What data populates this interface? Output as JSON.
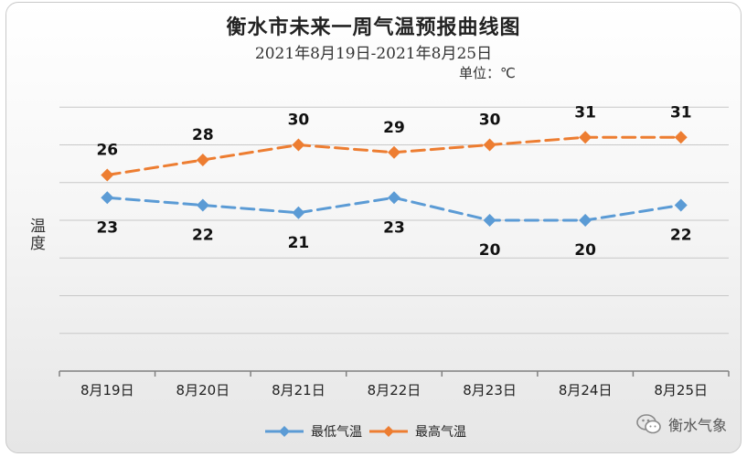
{
  "title": "衡水市未来一周气温预报曲线图",
  "subtitle": "2021年8月19日-2021年8月25日",
  "unit": "单位：℃",
  "ylabel": "温度",
  "brand": "衡水气象",
  "colors": {
    "high": "#ed7d31",
    "low": "#5b9bd5",
    "grid": "#c8c8c8",
    "axis": "#808080"
  },
  "chart_data": {
    "type": "line",
    "title": "衡水市未来一周气温预报曲线图",
    "subtitle": "2021年8月19日-2021年8月25日",
    "xlabel": "",
    "ylabel": "温度",
    "categories": [
      "8月19日",
      "8月20日",
      "8月21日",
      "8月22日",
      "8月23日",
      "8月24日",
      "8月25日"
    ],
    "series": [
      {
        "name": "最低气温",
        "values": [
          23,
          22,
          21,
          23,
          20,
          20,
          22
        ],
        "color": "#5b9bd5",
        "style": "dashed",
        "marker": "diamond"
      },
      {
        "name": "最高气温",
        "values": [
          26,
          28,
          30,
          29,
          30,
          31,
          31
        ],
        "color": "#ed7d31",
        "style": "dashed",
        "marker": "diamond"
      }
    ],
    "ylim": [
      0,
      35
    ],
    "grid": true,
    "legend": "bottom"
  }
}
